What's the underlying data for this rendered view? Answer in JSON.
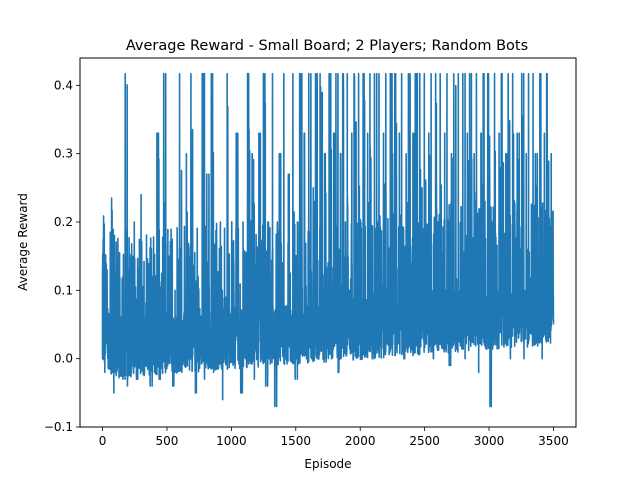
{
  "chart_data": {
    "type": "line",
    "title": "Average Reward - Small Board; 2 Players; Random Bots",
    "xlabel": "Episode",
    "ylabel": "Average Reward",
    "xlim": [
      -175,
      3675
    ],
    "ylim": [
      -0.1,
      0.44
    ],
    "xticks": [
      0,
      500,
      1000,
      1500,
      2000,
      2500,
      3000,
      3500
    ],
    "yticks": [
      -0.1,
      0.0,
      0.1,
      0.2,
      0.3,
      0.4
    ],
    "xtick_labels": [
      "0",
      "500",
      "1000",
      "1500",
      "2000",
      "2500",
      "3000",
      "3500"
    ],
    "ytick_labels": [
      "−0.1",
      "0.0",
      "0.1",
      "0.2",
      "0.3",
      "0.4"
    ],
    "grid": false,
    "color": "#1f77b4",
    "series": [
      {
        "x_range": [
          0,
          3500
        ],
        "values_note_levels": [
          0.417,
          0.33,
          0.305,
          0.27,
          0.24,
          0.2,
          0.15
        ],
        "values": [
          0.0,
          -0.02,
          0.13,
          0.02,
          0.235,
          -0.05,
          0.08,
          0.0,
          0.05,
          -0.03,
          0.417,
          -0.04,
          0.1,
          0.02,
          0.2,
          -0.03,
          0.05,
          0.24,
          0.0,
          0.06,
          0.03,
          -0.04,
          0.12,
          0.0,
          0.33,
          -0.03,
          0.08,
          0.417,
          0.01,
          0.15,
          0.03,
          -0.04,
          0.1,
          0.0,
          0.417,
          -0.02,
          0.06,
          0.3,
          0.0,
          0.417,
          0.02,
          -0.05,
          0.12,
          0.01,
          0.417,
          -0.03,
          0.27,
          0.02,
          0.417,
          -0.02,
          0.08,
          0.03,
          0.2,
          -0.06,
          0.09,
          0.417,
          0.0,
          0.15,
          0.1,
          0.33,
          0.02,
          -0.05,
          0.2,
          0.0,
          0.417,
          0.05,
          0.3,
          -0.03,
          0.1,
          0.33,
          0.02,
          0.417,
          -0.04,
          0.2,
          0.05,
          0.417,
          -0.07,
          0.1,
          0.3,
          0.02,
          0.417,
          0.05,
          0.27,
          0.01,
          0.417,
          -0.03,
          0.2,
          0.417,
          0.05,
          0.33,
          0.0,
          0.417,
          0.08,
          0.25,
          0.417,
          0.0,
          0.417,
          0.1,
          0.3,
          0.02,
          0.417,
          0.05,
          0.33,
          0.417,
          -0.02,
          0.3,
          0.417,
          0.05,
          0.417,
          0.1,
          0.33,
          0.417,
          0.01,
          0.417,
          0.2,
          0.417,
          0.05,
          0.33,
          0.417,
          0.0,
          0.417,
          0.2,
          0.417,
          0.05,
          0.33,
          0.417,
          0.02,
          0.417,
          0.3,
          0.417,
          0.05,
          0.33,
          0.417,
          0.0,
          0.3,
          0.417,
          0.05,
          0.33,
          0.417,
          0.02,
          0.417,
          0.25,
          0.417,
          0.05,
          0.33,
          0.417,
          0.0,
          0.417,
          0.2,
          0.417,
          0.05,
          0.33,
          0.417,
          -0.01,
          0.3,
          0.417,
          0.05,
          0.417,
          0.2,
          0.417,
          0.0,
          0.33,
          0.417,
          0.05,
          0.3,
          0.417,
          -0.02,
          0.33,
          0.417,
          0.05,
          0.417,
          -0.07,
          0.2,
          0.417,
          0.02,
          0.33,
          0.417,
          0.05,
          0.3,
          0.417,
          0.0,
          0.417,
          0.2,
          0.33,
          0.05,
          0.417,
          0.0,
          0.3,
          0.417,
          0.05,
          0.417,
          0.3,
          0.05,
          0.417,
          0.0,
          0.33,
          0.417,
          0.05,
          0.3,
          0.05
        ]
      }
    ]
  }
}
